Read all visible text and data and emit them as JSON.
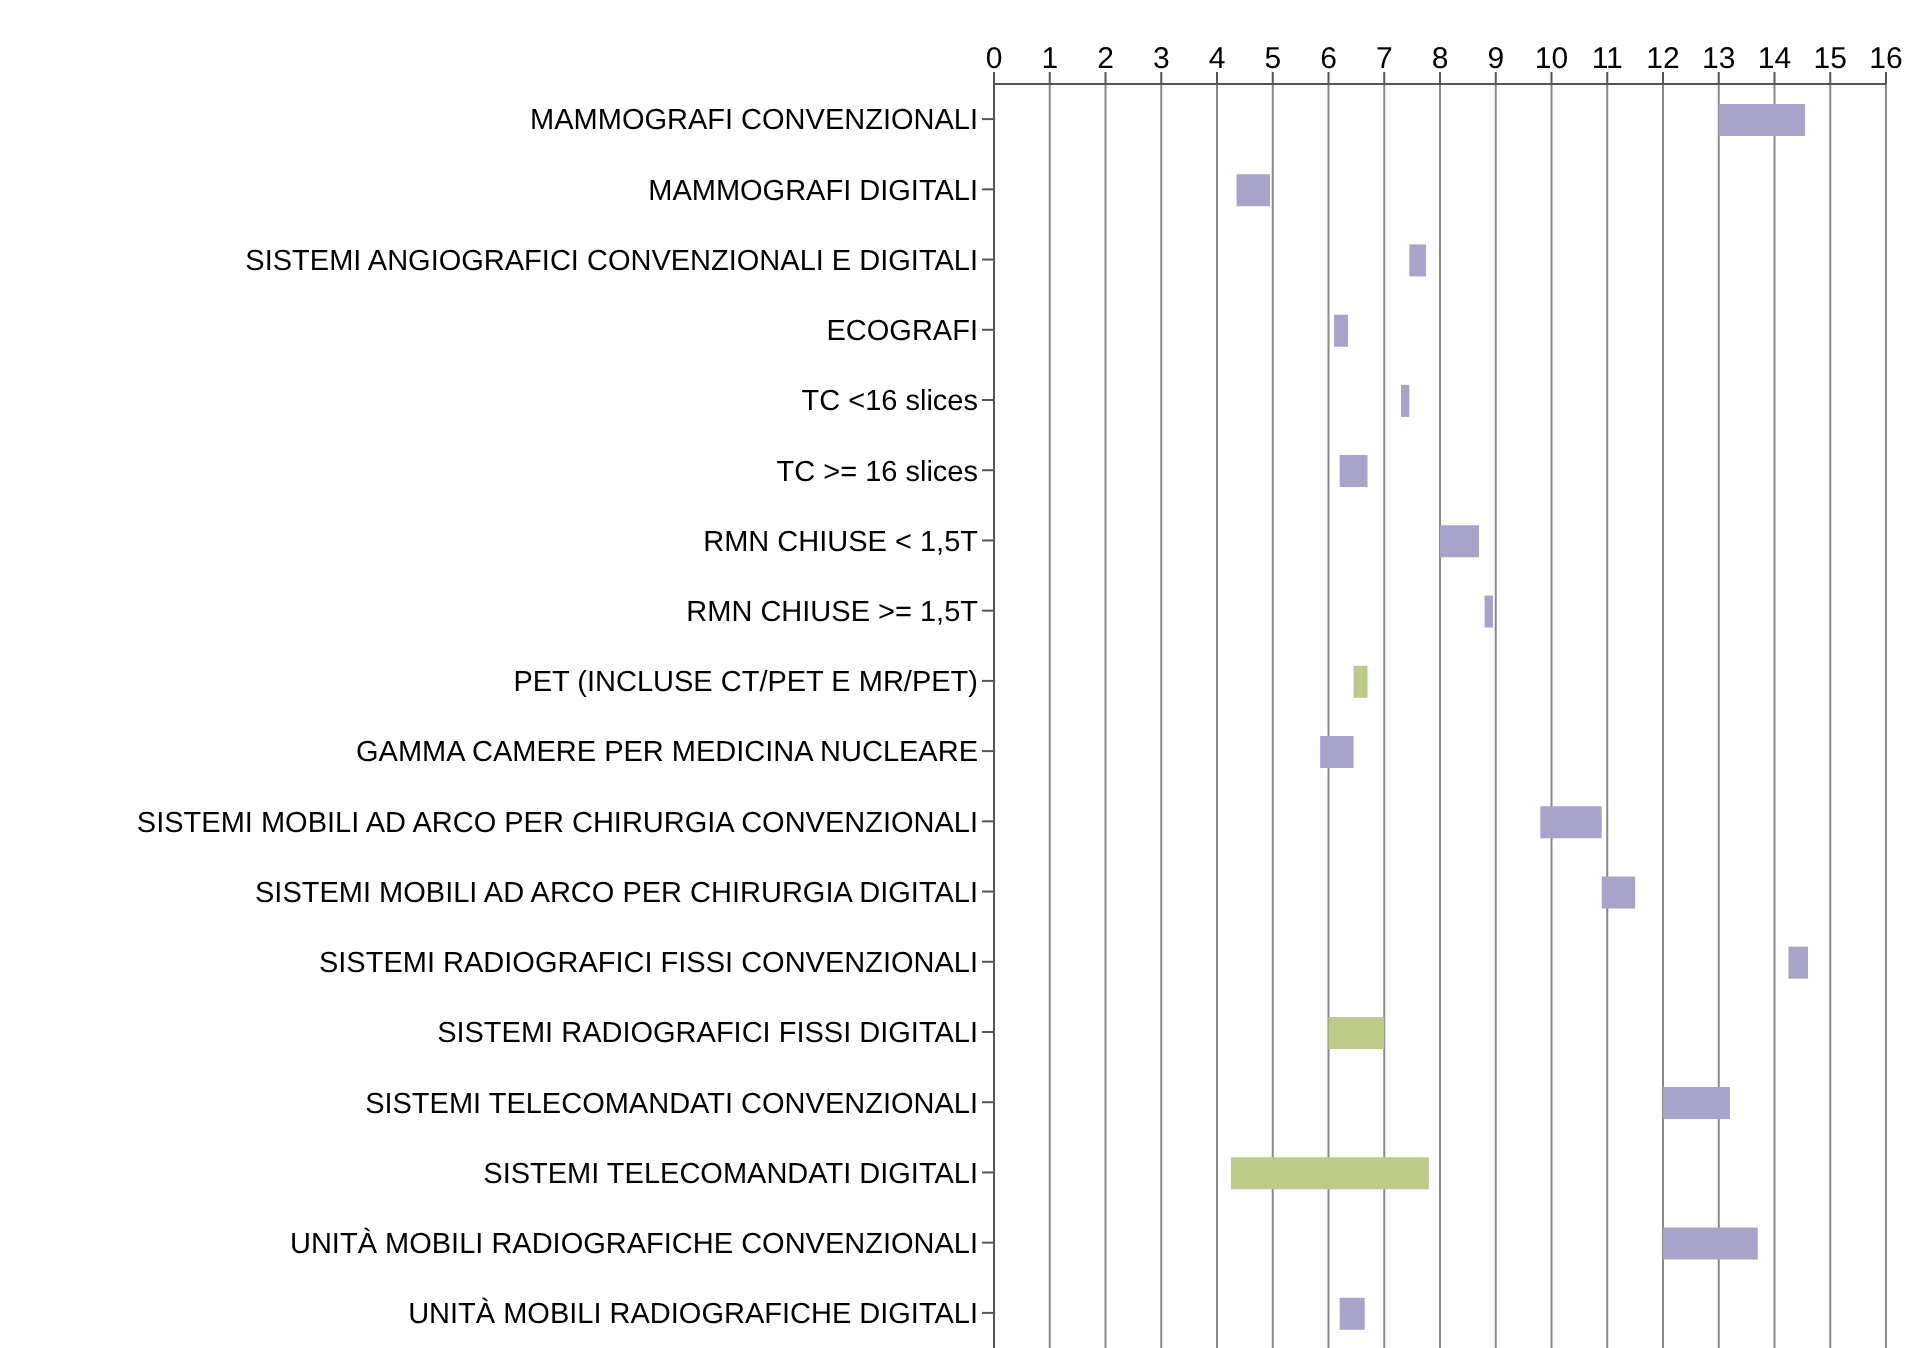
{
  "chart_data": {
    "type": "bar",
    "orientation": "horizontal",
    "categories": [
      "MAMMOGRAFI CONVENZIONALI",
      "MAMMOGRAFI DIGITALI",
      "SISTEMI ANGIOGRAFICI CONVENZIONALI E DIGITALI",
      "ECOGRAFI",
      "TC <16 slices",
      "TC >= 16 slices",
      "RMN CHIUSE < 1,5T",
      "RMN CHIUSE >= 1,5T",
      "PET (INCLUSE CT/PET E MR/PET)",
      "GAMMA CAMERE PER MEDICINA NUCLEARE",
      "SISTEMI MOBILI AD ARCO PER CHIRURGIA CONVENZIONALI",
      "SISTEMI MOBILI AD ARCO PER CHIRURGIA DIGITALI",
      "SISTEMI RADIOGRAFICI FISSI CONVENZIONALI",
      "SISTEMI RADIOGRAFICI FISSI DIGITALI",
      "SISTEMI TELECOMANDATI CONVENZIONALI",
      "SISTEMI TELECOMANDATI DIGITALI",
      "UNITÀ MOBILI RADIOGRAFICHE CONVENZIONALI",
      "UNITÀ MOBILI RADIOGRAFICHE DIGITALI"
    ],
    "base": [
      13,
      4.35,
      7.45,
      6.1,
      7.3,
      6.2,
      8,
      8.8,
      6.45,
      5.85,
      9.8,
      10.9,
      14.25,
      6,
      12,
      4.25,
      12,
      6.2
    ],
    "values": [
      1.55,
      0.6,
      0.3,
      0.25,
      0.15,
      0.5,
      0.7,
      0.15,
      0.25,
      0.6,
      1.1,
      0.6,
      0.35,
      1,
      1.2,
      3.55,
      1.7,
      0.45
    ],
    "colors": [
      "#a7a3c9",
      "#a7a3c9",
      "#a7a3c9",
      "#a7a3c9",
      "#a7a3c9",
      "#a7a3c9",
      "#a7a3c9",
      "#a7a3c9",
      "#bccb87",
      "#a7a3c9",
      "#a7a3c9",
      "#a7a3c9",
      "#a7a3c9",
      "#bccb87",
      "#a7a3c9",
      "#bccb87",
      "#a7a3c9",
      "#a7a3c9"
    ],
    "xlim": [
      0,
      16
    ],
    "xticks": [
      0,
      1,
      2,
      3,
      4,
      5,
      6,
      7,
      8,
      9,
      10,
      11,
      12,
      13,
      14,
      15,
      16
    ],
    "grid": "x",
    "legend": false
  }
}
